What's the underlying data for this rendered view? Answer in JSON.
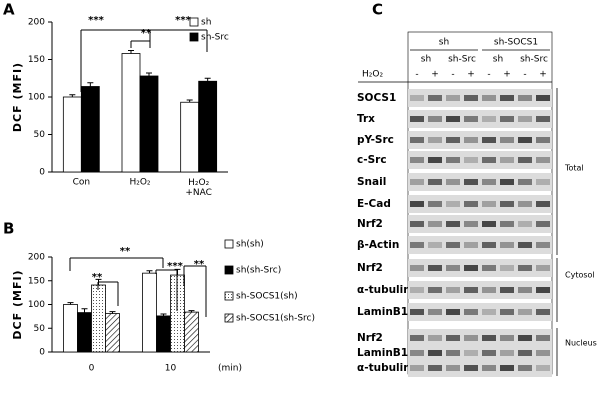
{
  "chart_data": [
    {
      "type": "bar",
      "panel": "A",
      "ylabel": "DCF (MFI)",
      "categories": [
        "Con",
        "H₂O₂",
        "H₂O₂ +NAC"
      ],
      "series": [
        {
          "name": "sh",
          "color": "#ffffff",
          "pattern": "solid",
          "values": [
            100,
            158,
            93
          ],
          "errors": [
            3,
            4,
            3
          ]
        },
        {
          "name": "sh-Src",
          "color": "#000000",
          "pattern": "solid",
          "values": [
            114,
            128,
            121
          ],
          "errors": [
            5,
            4,
            4
          ]
        }
      ],
      "ylim": [
        0,
        200
      ],
      "yticks": [
        0,
        50,
        100,
        150,
        200
      ],
      "annotations": [
        "***",
        "**",
        "***"
      ]
    },
    {
      "type": "bar",
      "panel": "B",
      "ylabel": "DCF (MFI)",
      "xlabel": "(min)",
      "categories": [
        "0",
        "10"
      ],
      "series": [
        {
          "name": "sh(sh)",
          "color": "#ffffff",
          "pattern": "solid",
          "values": [
            100,
            166
          ],
          "errors": [
            4,
            5
          ]
        },
        {
          "name": "sh(sh-Src)",
          "color": "#000000",
          "pattern": "solid",
          "values": [
            83,
            76
          ],
          "errors": [
            8,
            4
          ]
        },
        {
          "name": "sh-SOCS1(sh)",
          "color": "#ffffff",
          "pattern": "dots",
          "values": [
            141,
            162
          ],
          "errors": [
            12,
            12
          ]
        },
        {
          "name": "sh-SOCS1(sh-Src)",
          "color": "#ffffff",
          "pattern": "hatch",
          "values": [
            81,
            84
          ],
          "errors": [
            4,
            3
          ]
        }
      ],
      "ylim": [
        0,
        200
      ],
      "yticks": [
        0,
        50,
        100,
        150,
        200
      ],
      "annotations": [
        "**",
        "**",
        "***",
        "**"
      ]
    }
  ],
  "blot": {
    "panel": "C",
    "groups": [
      "sh",
      "sh-SOCS1"
    ],
    "subgroups": [
      "sh",
      "sh-Src",
      "sh",
      "sh-Src"
    ],
    "treatment": "H₂O₂",
    "treatment_signs": [
      "-",
      "+",
      "-",
      "+",
      "-",
      "+",
      "-",
      "+"
    ],
    "rows": [
      "SOCS1",
      "Trx",
      "pY-Src",
      "c-Src",
      "Snail",
      "E-Cad",
      "Nrf2",
      "β-Actin",
      "Nrf2",
      "α-tubulin",
      "LaminB1",
      "Nrf2",
      "LaminB1",
      "α-tubulin"
    ],
    "fractions": [
      "Total",
      "Cytosol",
      "Nucleus"
    ]
  }
}
